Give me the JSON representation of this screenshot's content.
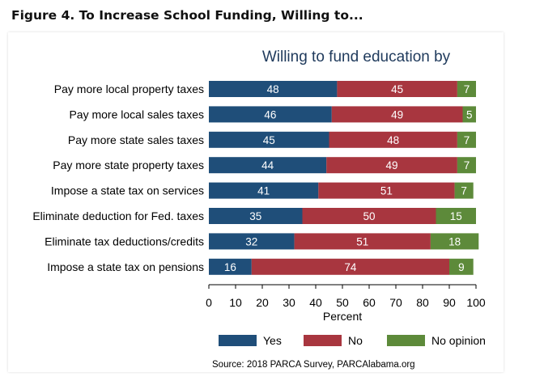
{
  "figure_title": "Figure 4. To Increase School Funding, Willing to...",
  "source": "Source: 2018 PARCA Survey, PARCAlabama.org",
  "colors": {
    "Yes": "#1f4e79",
    "No": "#a8363f",
    "No opinion": "#5d8a3a"
  },
  "chart_data": {
    "type": "bar",
    "orientation": "horizontal",
    "stacked": true,
    "title": "Willing to fund education by",
    "xlabel": "Percent",
    "ylabel": "",
    "xlim": [
      0,
      100
    ],
    "xticks": [
      0,
      10,
      20,
      30,
      40,
      50,
      60,
      70,
      80,
      90,
      100
    ],
    "categories": [
      "Pay more local property taxes",
      "Pay more local sales taxes",
      "Pay more state sales taxes",
      "Pay more state property taxes",
      "Impose a state tax on services",
      "Eliminate deduction for Fed. taxes",
      "Eliminate tax deductions/credits",
      "Impose a state tax on pensions"
    ],
    "series": [
      {
        "name": "Yes",
        "values": [
          48,
          46,
          45,
          44,
          41,
          35,
          32,
          16
        ]
      },
      {
        "name": "No",
        "values": [
          45,
          49,
          48,
          49,
          51,
          50,
          51,
          74
        ]
      },
      {
        "name": "No opinion",
        "values": [
          7,
          5,
          7,
          7,
          7,
          15,
          18,
          9
        ]
      }
    ],
    "legend_position": "bottom",
    "grid": false
  }
}
